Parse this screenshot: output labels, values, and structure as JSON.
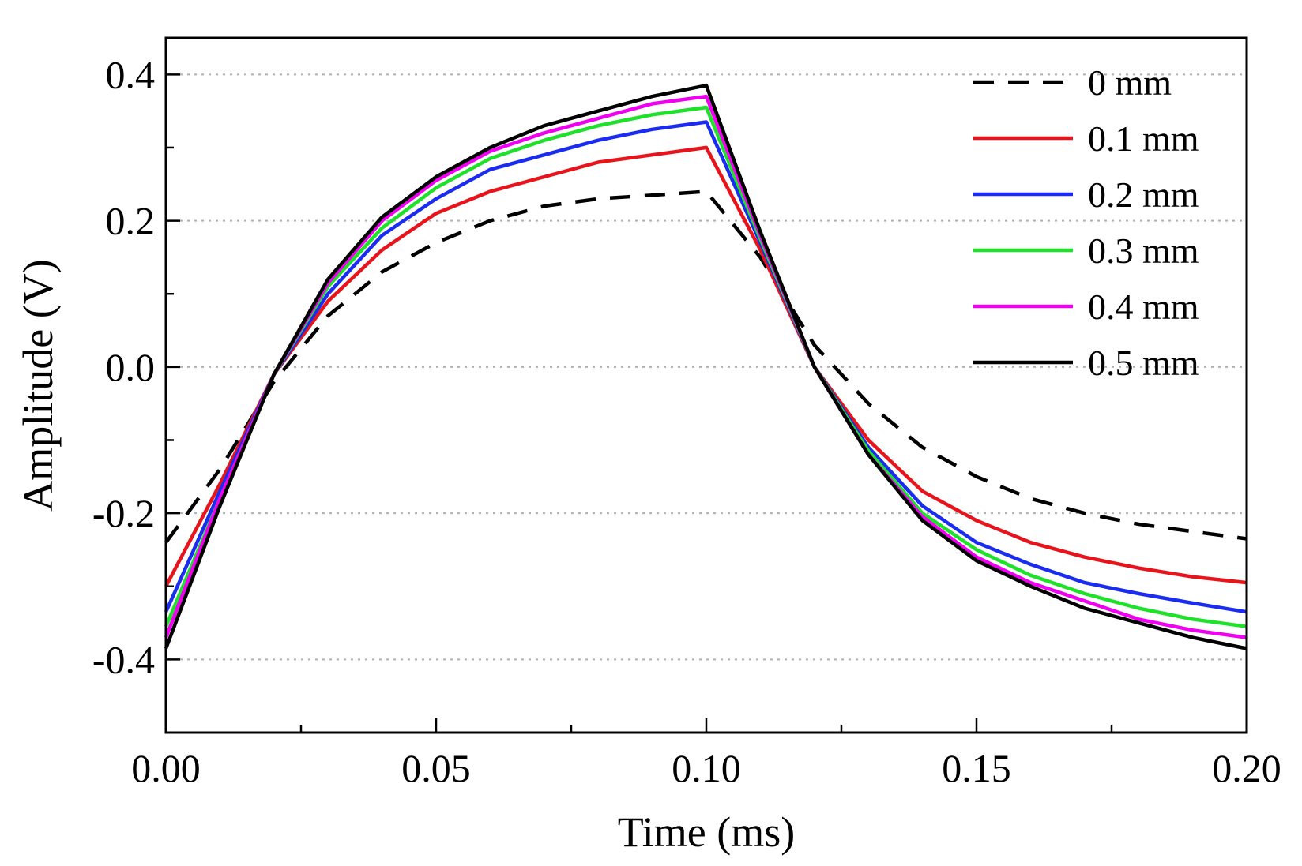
{
  "chart_data": {
    "type": "line",
    "xlabel": "Time (ms)",
    "ylabel": "Amplitude (V)",
    "xlim": [
      0.0,
      0.2
    ],
    "ylim": [
      -0.5,
      0.45
    ],
    "x_ticks": [
      "0.00",
      "0.05",
      "0.10",
      "0.15",
      "0.20"
    ],
    "y_ticks": [
      "-0.4",
      "-0.2",
      "0.0",
      "0.2",
      "0.4"
    ],
    "x_tick_values": [
      0.0,
      0.05,
      0.1,
      0.15,
      0.2
    ],
    "y_tick_values": [
      -0.4,
      -0.2,
      0.0,
      0.2,
      0.4
    ],
    "grid": "horizontal dotted",
    "legend_position": "top-right",
    "x": [
      0.0,
      0.01,
      0.02,
      0.03,
      0.04,
      0.05,
      0.06,
      0.07,
      0.08,
      0.09,
      0.1,
      0.11,
      0.12,
      0.13,
      0.14,
      0.15,
      0.16,
      0.17,
      0.18,
      0.19,
      0.2
    ],
    "series": [
      {
        "name": "0 mm",
        "color": "#000000",
        "dash": true,
        "values": [
          -0.24,
          -0.14,
          -0.02,
          0.07,
          0.13,
          0.17,
          0.2,
          0.22,
          0.23,
          0.235,
          0.24,
          0.15,
          0.03,
          -0.05,
          -0.11,
          -0.15,
          -0.18,
          -0.2,
          -0.215,
          -0.225,
          -0.235
        ]
      },
      {
        "name": "0.1 mm",
        "color": "#e8141b",
        "values": [
          -0.3,
          -0.16,
          -0.01,
          0.09,
          0.16,
          0.21,
          0.24,
          0.26,
          0.28,
          0.29,
          0.3,
          0.16,
          0.0,
          -0.1,
          -0.17,
          -0.21,
          -0.24,
          -0.26,
          -0.275,
          -0.287,
          -0.295
        ]
      },
      {
        "name": "0.2 mm",
        "color": "#1a2cf0",
        "values": [
          -0.335,
          -0.17,
          -0.01,
          0.1,
          0.18,
          0.23,
          0.27,
          0.29,
          0.31,
          0.325,
          0.335,
          0.17,
          0.0,
          -0.11,
          -0.19,
          -0.24,
          -0.27,
          -0.295,
          -0.31,
          -0.323,
          -0.335
        ]
      },
      {
        "name": "0.3 mm",
        "color": "#1ee12a",
        "values": [
          -0.355,
          -0.18,
          -0.01,
          0.11,
          0.19,
          0.245,
          0.285,
          0.31,
          0.33,
          0.345,
          0.355,
          0.175,
          0.0,
          -0.115,
          -0.2,
          -0.25,
          -0.285,
          -0.31,
          -0.33,
          -0.345,
          -0.355
        ]
      },
      {
        "name": "0.4 mm",
        "color": "#f000f0",
        "values": [
          -0.37,
          -0.18,
          -0.01,
          0.115,
          0.2,
          0.255,
          0.295,
          0.32,
          0.34,
          0.36,
          0.37,
          0.18,
          0.0,
          -0.12,
          -0.205,
          -0.26,
          -0.295,
          -0.32,
          -0.345,
          -0.36,
          -0.37
        ]
      },
      {
        "name": "0.5 mm",
        "color": "#000000",
        "values": [
          -0.385,
          -0.19,
          -0.01,
          0.12,
          0.205,
          0.26,
          0.3,
          0.33,
          0.35,
          0.37,
          0.385,
          0.185,
          0.0,
          -0.12,
          -0.21,
          -0.265,
          -0.3,
          -0.33,
          -0.35,
          -0.37,
          -0.385
        ]
      }
    ]
  }
}
